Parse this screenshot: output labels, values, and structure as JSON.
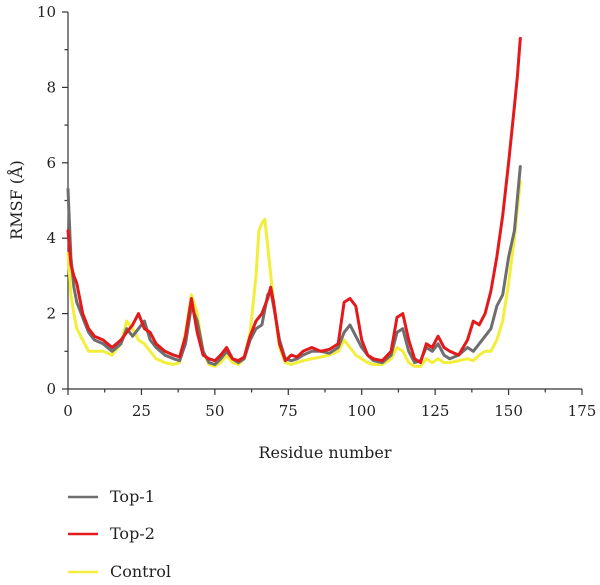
{
  "chart_data": {
    "type": "line",
    "title": "",
    "xlabel": "Residue number",
    "ylabel": "RMSF (Å)",
    "xlim": [
      0,
      175
    ],
    "ylim": [
      0,
      10
    ],
    "xticks": [
      0,
      25,
      50,
      75,
      100,
      125,
      150,
      175
    ],
    "yticks": [
      0,
      2,
      4,
      6,
      8,
      10
    ],
    "legend_position": "bottom-left",
    "series": [
      {
        "name": "Top-1",
        "color": "#6e6e6e",
        "points": [
          [
            0,
            5.3
          ],
          [
            1,
            3.5
          ],
          [
            2,
            2.7
          ],
          [
            3,
            2.3
          ],
          [
            5,
            1.9
          ],
          [
            7,
            1.5
          ],
          [
            9,
            1.3
          ],
          [
            12,
            1.2
          ],
          [
            15,
            1.0
          ],
          [
            18,
            1.2
          ],
          [
            20,
            1.6
          ],
          [
            22,
            1.4
          ],
          [
            24,
            1.6
          ],
          [
            26,
            1.8
          ],
          [
            28,
            1.3
          ],
          [
            30,
            1.1
          ],
          [
            33,
            0.9
          ],
          [
            36,
            0.8
          ],
          [
            38,
            0.75
          ],
          [
            40,
            1.2
          ],
          [
            42,
            2.2
          ],
          [
            44,
            1.8
          ],
          [
            46,
            1.0
          ],
          [
            48,
            0.7
          ],
          [
            50,
            0.65
          ],
          [
            52,
            0.8
          ],
          [
            54,
            1.0
          ],
          [
            56,
            0.8
          ],
          [
            58,
            0.7
          ],
          [
            60,
            0.8
          ],
          [
            62,
            1.3
          ],
          [
            64,
            1.6
          ],
          [
            66,
            1.7
          ],
          [
            68,
            2.5
          ],
          [
            69,
            2.6
          ],
          [
            70,
            2.2
          ],
          [
            72,
            1.3
          ],
          [
            74,
            0.8
          ],
          [
            76,
            0.75
          ],
          [
            78,
            0.8
          ],
          [
            80,
            0.9
          ],
          [
            83,
            1.0
          ],
          [
            86,
            1.0
          ],
          [
            89,
            0.95
          ],
          [
            92,
            1.1
          ],
          [
            94,
            1.5
          ],
          [
            96,
            1.7
          ],
          [
            98,
            1.4
          ],
          [
            100,
            1.1
          ],
          [
            102,
            0.9
          ],
          [
            104,
            0.75
          ],
          [
            107,
            0.7
          ],
          [
            110,
            0.9
          ],
          [
            112,
            1.5
          ],
          [
            114,
            1.6
          ],
          [
            116,
            1.0
          ],
          [
            118,
            0.7
          ],
          [
            120,
            0.75
          ],
          [
            122,
            1.1
          ],
          [
            124,
            1.0
          ],
          [
            126,
            1.2
          ],
          [
            128,
            0.9
          ],
          [
            130,
            0.8
          ],
          [
            133,
            0.9
          ],
          [
            136,
            1.1
          ],
          [
            138,
            1.0
          ],
          [
            140,
            1.2
          ],
          [
            142,
            1.4
          ],
          [
            144,
            1.6
          ],
          [
            146,
            2.2
          ],
          [
            148,
            2.5
          ],
          [
            150,
            3.5
          ],
          [
            152,
            4.2
          ],
          [
            154,
            5.9
          ]
        ]
      },
      {
        "name": "Top-2",
        "color": "#e31a1c",
        "points": [
          [
            0,
            4.2
          ],
          [
            1,
            3.3
          ],
          [
            2,
            3.0
          ],
          [
            3,
            2.8
          ],
          [
            5,
            2.0
          ],
          [
            7,
            1.6
          ],
          [
            9,
            1.4
          ],
          [
            12,
            1.3
          ],
          [
            15,
            1.1
          ],
          [
            18,
            1.3
          ],
          [
            20,
            1.5
          ],
          [
            22,
            1.7
          ],
          [
            24,
            2.0
          ],
          [
            26,
            1.6
          ],
          [
            28,
            1.5
          ],
          [
            30,
            1.2
          ],
          [
            33,
            1.0
          ],
          [
            36,
            0.9
          ],
          [
            38,
            0.85
          ],
          [
            40,
            1.4
          ],
          [
            42,
            2.4
          ],
          [
            44,
            1.5
          ],
          [
            46,
            0.9
          ],
          [
            48,
            0.8
          ],
          [
            50,
            0.75
          ],
          [
            52,
            0.9
          ],
          [
            54,
            1.1
          ],
          [
            56,
            0.8
          ],
          [
            58,
            0.75
          ],
          [
            60,
            0.85
          ],
          [
            62,
            1.4
          ],
          [
            64,
            1.8
          ],
          [
            66,
            2.0
          ],
          [
            68,
            2.4
          ],
          [
            69,
            2.7
          ],
          [
            70,
            2.3
          ],
          [
            72,
            1.2
          ],
          [
            74,
            0.75
          ],
          [
            76,
            0.9
          ],
          [
            78,
            0.85
          ],
          [
            80,
            1.0
          ],
          [
            83,
            1.1
          ],
          [
            86,
            1.0
          ],
          [
            89,
            1.05
          ],
          [
            92,
            1.2
          ],
          [
            94,
            2.3
          ],
          [
            96,
            2.4
          ],
          [
            98,
            2.2
          ],
          [
            100,
            1.3
          ],
          [
            102,
            0.9
          ],
          [
            104,
            0.8
          ],
          [
            107,
            0.75
          ],
          [
            110,
            1.0
          ],
          [
            112,
            1.9
          ],
          [
            114,
            2.0
          ],
          [
            116,
            1.3
          ],
          [
            118,
            0.8
          ],
          [
            120,
            0.7
          ],
          [
            122,
            1.2
          ],
          [
            124,
            1.1
          ],
          [
            126,
            1.4
          ],
          [
            128,
            1.1
          ],
          [
            130,
            1.0
          ],
          [
            133,
            0.9
          ],
          [
            136,
            1.3
          ],
          [
            138,
            1.8
          ],
          [
            140,
            1.7
          ],
          [
            142,
            2.0
          ],
          [
            144,
            2.6
          ],
          [
            146,
            3.5
          ],
          [
            148,
            4.6
          ],
          [
            150,
            6.0
          ],
          [
            152,
            7.5
          ],
          [
            153,
            8.3
          ],
          [
            154,
            9.3
          ]
        ]
      },
      {
        "name": "Control",
        "color": "#f2ee3a",
        "points": [
          [
            0,
            3.6
          ],
          [
            1,
            2.5
          ],
          [
            2,
            2.0
          ],
          [
            3,
            1.6
          ],
          [
            5,
            1.3
          ],
          [
            7,
            1.0
          ],
          [
            9,
            1.0
          ],
          [
            12,
            1.0
          ],
          [
            15,
            0.9
          ],
          [
            18,
            1.2
          ],
          [
            20,
            1.8
          ],
          [
            22,
            1.6
          ],
          [
            24,
            1.3
          ],
          [
            26,
            1.2
          ],
          [
            28,
            1.0
          ],
          [
            30,
            0.8
          ],
          [
            33,
            0.7
          ],
          [
            36,
            0.65
          ],
          [
            38,
            0.7
          ],
          [
            40,
            1.5
          ],
          [
            42,
            2.5
          ],
          [
            44,
            2.0
          ],
          [
            46,
            1.0
          ],
          [
            48,
            0.65
          ],
          [
            50,
            0.6
          ],
          [
            52,
            0.7
          ],
          [
            54,
            0.9
          ],
          [
            56,
            0.7
          ],
          [
            58,
            0.65
          ],
          [
            60,
            0.8
          ],
          [
            62,
            1.5
          ],
          [
            64,
            3.0
          ],
          [
            65,
            4.2
          ],
          [
            66,
            4.4
          ],
          [
            67,
            4.5
          ],
          [
            68,
            3.8
          ],
          [
            70,
            2.3
          ],
          [
            72,
            1.1
          ],
          [
            74,
            0.7
          ],
          [
            76,
            0.65
          ],
          [
            78,
            0.7
          ],
          [
            80,
            0.75
          ],
          [
            83,
            0.8
          ],
          [
            86,
            0.85
          ],
          [
            89,
            0.9
          ],
          [
            92,
            1.0
          ],
          [
            94,
            1.3
          ],
          [
            96,
            1.1
          ],
          [
            98,
            0.9
          ],
          [
            100,
            0.8
          ],
          [
            102,
            0.7
          ],
          [
            104,
            0.65
          ],
          [
            107,
            0.65
          ],
          [
            110,
            0.8
          ],
          [
            112,
            1.1
          ],
          [
            114,
            1.0
          ],
          [
            116,
            0.7
          ],
          [
            118,
            0.6
          ],
          [
            120,
            0.6
          ],
          [
            122,
            0.8
          ],
          [
            124,
            0.7
          ],
          [
            126,
            0.8
          ],
          [
            128,
            0.7
          ],
          [
            130,
            0.7
          ],
          [
            133,
            0.75
          ],
          [
            136,
            0.8
          ],
          [
            138,
            0.75
          ],
          [
            140,
            0.9
          ],
          [
            142,
            1.0
          ],
          [
            144,
            1.0
          ],
          [
            146,
            1.3
          ],
          [
            148,
            1.8
          ],
          [
            150,
            2.8
          ],
          [
            152,
            4.0
          ],
          [
            154,
            5.5
          ]
        ]
      }
    ]
  }
}
